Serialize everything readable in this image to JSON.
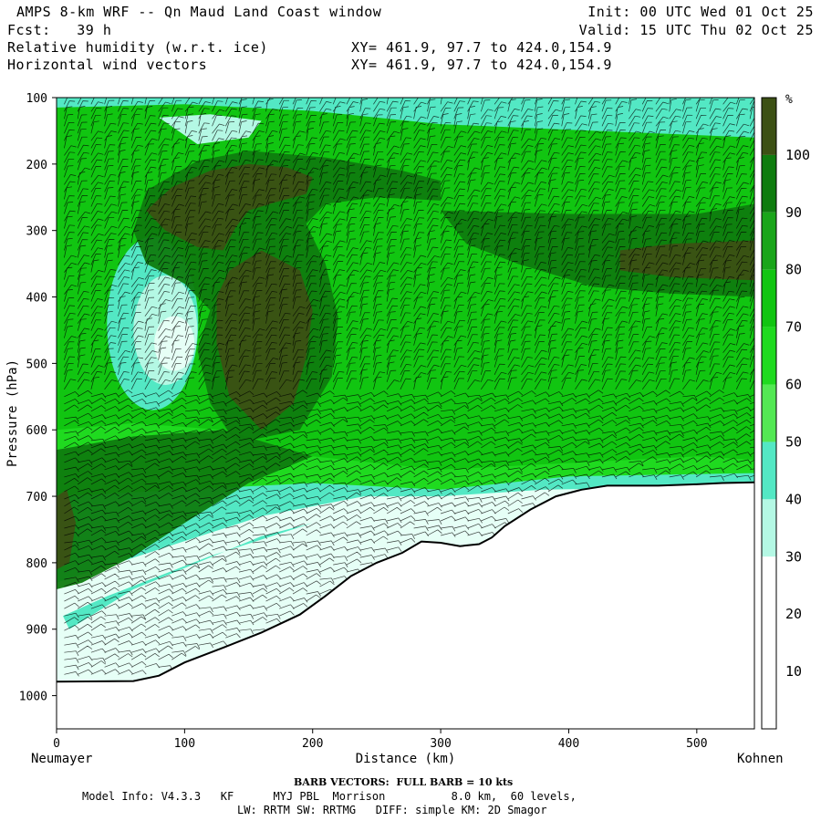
{
  "header": {
    "title": "AMPS 8-km WRF -- Qn Maud Land Coast window",
    "fcst": "Fcst:   39 h",
    "field1": "Relative humidity (w.r.t. ice)",
    "field2": "Horizontal wind vectors",
    "init": "Init: 00 UTC Wed 01 Oct 25",
    "valid": "Valid: 15 UTC Thu 02 Oct 25",
    "xy1": "XY= 461.9, 97.7 to 424.0,154.9",
    "xy2": "XY= 461.9, 97.7 to 424.0,154.9"
  },
  "footer": {
    "barb": "BARB VECTORS:  FULL BARB = 10 kts",
    "model1": "Model Info: V4.3.3   KF      MYJ PBL  Morrison          8.0 km,  60 levels,",
    "model2": "LW: RRTM SW: RRTMG   DIFF: simple KM: 2D Smagor"
  },
  "colors": {
    "c20_30": "#e6fff6",
    "c30_40": "#b4f8e4",
    "c40_50": "#53e8c4",
    "c50_60": "#53e853",
    "c60_70": "#1fda1f",
    "c70_80": "#11c511",
    "c80_90": "#1aa51a",
    "c90_100": "#0f7c0f",
    "c100": "#3c5014"
  },
  "chart_data": {
    "type": "heatmap",
    "title": "Relative humidity (w.r.t. ice) and horizontal wind vectors, cross-section",
    "xlabel": "Distance (km)",
    "ylabel": "Pressure (hPa)",
    "xlim": [
      0,
      545
    ],
    "ylim": [
      1050,
      100
    ],
    "x_ticks": [
      0,
      100,
      200,
      300,
      400,
      500
    ],
    "y_ticks": [
      100,
      200,
      300,
      400,
      500,
      600,
      700,
      800,
      900,
      1000
    ],
    "x_endpoints": {
      "left": "Neumayer",
      "right": "Kohnen"
    },
    "colorbar": {
      "unit": "%",
      "levels": [
        10,
        20,
        30,
        40,
        50,
        60,
        70,
        80,
        90,
        100
      ]
    },
    "terrain_surface_hpa": [
      [
        0,
        979
      ],
      [
        60,
        978
      ],
      [
        80,
        970
      ],
      [
        100,
        950
      ],
      [
        130,
        928
      ],
      [
        160,
        905
      ],
      [
        190,
        878
      ],
      [
        210,
        850
      ],
      [
        230,
        820
      ],
      [
        250,
        800
      ],
      [
        270,
        785
      ],
      [
        285,
        768
      ],
      [
        300,
        770
      ],
      [
        315,
        775
      ],
      [
        330,
        772
      ],
      [
        340,
        762
      ],
      [
        350,
        745
      ],
      [
        370,
        720
      ],
      [
        390,
        700
      ],
      [
        410,
        690
      ],
      [
        430,
        684
      ],
      [
        470,
        684
      ],
      [
        500,
        682
      ],
      [
        520,
        680
      ],
      [
        545,
        679
      ]
    ],
    "humidity_bands": [
      {
        "label": ">100",
        "regions": [
          [
            [
              70,
              270
            ],
            [
              90,
              235
            ],
            [
              120,
              210
            ],
            [
              150,
              200
            ],
            [
              180,
              205
            ],
            [
              200,
              220
            ],
            [
              195,
              245
            ],
            [
              170,
              258
            ],
            [
              150,
              270
            ],
            [
              140,
              295
            ],
            [
              130,
              330
            ],
            [
              110,
              325
            ],
            [
              85,
              300
            ]
          ],
          [
            [
              125,
              400
            ],
            [
              135,
              360
            ],
            [
              160,
              330
            ],
            [
              190,
              360
            ],
            [
              200,
              420
            ],
            [
              195,
              490
            ],
            [
              185,
              560
            ],
            [
              160,
              600
            ],
            [
              135,
              550
            ],
            [
              125,
              470
            ]
          ],
          [
            [
              0,
              700
            ],
            [
              8,
              690
            ],
            [
              15,
              740
            ],
            [
              10,
              800
            ],
            [
              0,
              810
            ]
          ],
          [
            [
              440,
              330
            ],
            [
              480,
              320
            ],
            [
              545,
              315
            ],
            [
              545,
              375
            ],
            [
              480,
              370
            ],
            [
              440,
              360
            ]
          ]
        ]
      },
      {
        "label": "90-100",
        "regions": [
          [
            [
              60,
              300
            ],
            [
              70,
              240
            ],
            [
              110,
              195
            ],
            [
              150,
              180
            ],
            [
              210,
              190
            ],
            [
              270,
              210
            ],
            [
              300,
              225
            ],
            [
              300,
              255
            ],
            [
              250,
              250
            ],
            [
              210,
              260
            ],
            [
              195,
              290
            ],
            [
              210,
              350
            ],
            [
              220,
              430
            ],
            [
              215,
              520
            ],
            [
              190,
              600
            ],
            [
              140,
              620
            ],
            [
              120,
              560
            ],
            [
              110,
              480
            ],
            [
              120,
              420
            ],
            [
              100,
              380
            ],
            [
              70,
              350
            ]
          ],
          [
            [
              0,
              630
            ],
            [
              60,
              610
            ],
            [
              130,
              600
            ],
            [
              200,
              640
            ],
            [
              150,
              680
            ],
            [
              100,
              740
            ],
            [
              60,
              790
            ],
            [
              20,
              830
            ],
            [
              0,
              840
            ]
          ],
          [
            [
              300,
              270
            ],
            [
              400,
              275
            ],
            [
              500,
              275
            ],
            [
              545,
              260
            ],
            [
              545,
              400
            ],
            [
              480,
              395
            ],
            [
              420,
              385
            ],
            [
              360,
              350
            ],
            [
              320,
              320
            ]
          ]
        ]
      }
    ],
    "wind_barbs": "dense field of wind barbs over the whole section; full barb = 10 kts"
  }
}
